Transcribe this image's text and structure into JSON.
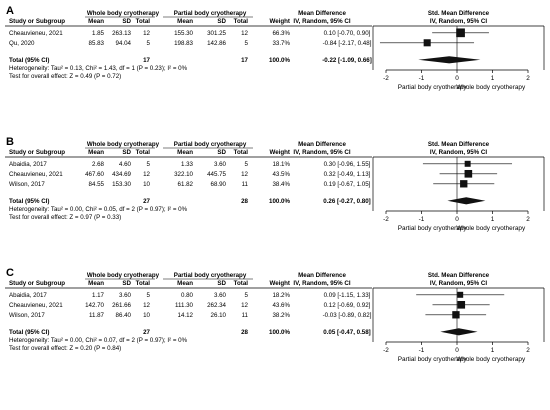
{
  "colors": {
    "line": "#000000",
    "box": "#111111",
    "text": "#000000"
  },
  "headers": {
    "study": "Study or Subgroup",
    "group1": "Whole body cryotherapy",
    "group2": "Partial body cryotherapy",
    "mean": "Mean",
    "sd": "SD",
    "total": "Total",
    "weight": "Weight",
    "md_line1": "Mean Difference",
    "md_line2": "IV, Random, 95% CI",
    "smd_line1": "Std. Mean Difference",
    "smd_line2": "IV, Random, 95% CI"
  },
  "chart_data": [
    {
      "type": "forest",
      "panel": "A",
      "studies": [
        {
          "name": "Cheauvieneu, 2021",
          "g1_mean": "1.85",
          "g1_sd": "263.13",
          "g1_n": "12",
          "g2_mean": "155.30",
          "g2_sd": "301.25",
          "g2_n": "12",
          "weight": "66.3%",
          "ci_text": "0.10 [-0.70, 0.90]",
          "est": 0.1,
          "lo": -0.7,
          "hi": 0.9,
          "w": 66.3
        },
        {
          "name": "Qu, 2020",
          "g1_mean": "85.83",
          "g1_sd": "94.04",
          "g1_n": "5",
          "g2_mean": "198.83",
          "g2_sd": "142.86",
          "g2_n": "5",
          "weight": "33.7%",
          "ci_text": "-0.84 [-2.17, 0.48]",
          "est": -0.84,
          "lo": -2.17,
          "hi": 0.48,
          "w": 33.7
        }
      ],
      "total": {
        "label": "Total (95% CI)",
        "g1_n": "17",
        "g2_n": "17",
        "weight": "100.0%",
        "ci_text": "-0.22 [-1.09, 0.66]",
        "est": -0.22,
        "lo": -1.09,
        "hi": 0.66
      },
      "heterogeneity": "Heterogeneity: Tau² = 0.13, Chi² = 1.43, df = 1 (P = 0.23); I² = 0%",
      "overall_test": "Test for overall effect: Z = 0.49 (P = 0.72)",
      "xlim": [
        -2,
        2
      ],
      "ticks": [
        "-2",
        "-1",
        "0",
        "1",
        "2"
      ],
      "left_label": "Partial body cryotherapy",
      "right_label": "Whole body cryotherapy"
    },
    {
      "type": "forest",
      "panel": "B",
      "studies": [
        {
          "name": "Abaidia, 2017",
          "g1_mean": "2.68",
          "g1_sd": "4.60",
          "g1_n": "5",
          "g2_mean": "1.33",
          "g2_sd": "3.60",
          "g2_n": "5",
          "weight": "18.1%",
          "ci_text": "0.30 [-0.96, 1.55]",
          "est": 0.3,
          "lo": -0.96,
          "hi": 1.55,
          "w": 18.1
        },
        {
          "name": "Cheauvieneu, 2021",
          "g1_mean": "467.60",
          "g1_sd": "434.69",
          "g1_n": "12",
          "g2_mean": "322.10",
          "g2_sd": "445.75",
          "g2_n": "12",
          "weight": "43.5%",
          "ci_text": "0.32 [-0.49, 1.13]",
          "est": 0.32,
          "lo": -0.49,
          "hi": 1.13,
          "w": 43.5
        },
        {
          "name": "Wilson, 2017",
          "g1_mean": "84.55",
          "g1_sd": "153.30",
          "g1_n": "10",
          "g2_mean": "61.82",
          "g2_sd": "68.90",
          "g2_n": "11",
          "weight": "38.4%",
          "ci_text": "0.19 [-0.67, 1.05]",
          "est": 0.19,
          "lo": -0.67,
          "hi": 1.05,
          "w": 38.4
        }
      ],
      "total": {
        "label": "Total (95% CI)",
        "g1_n": "27",
        "g2_n": "28",
        "weight": "100.0%",
        "ci_text": "0.26 [-0.27, 0.80]",
        "est": 0.26,
        "lo": -0.27,
        "hi": 0.8
      },
      "heterogeneity": "Heterogeneity: Tau² = 0.00, Chi² = 0.05, df = 2 (P = 0.97); I² = 0%",
      "overall_test": "Test for overall effect: Z = 0.97 (P = 0.33)",
      "xlim": [
        -2,
        2
      ],
      "ticks": [
        "-2",
        "-1",
        "0",
        "1",
        "2"
      ],
      "left_label": "Partial body cryotherapy",
      "right_label": "Whole body cryotherapy"
    },
    {
      "type": "forest",
      "panel": "C",
      "studies": [
        {
          "name": "Abaidia, 2017",
          "g1_mean": "1.17",
          "g1_sd": "3.60",
          "g1_n": "5",
          "g2_mean": "0.80",
          "g2_sd": "3.60",
          "g2_n": "5",
          "weight": "18.2%",
          "ci_text": "0.09 [-1.15, 1.33]",
          "est": 0.09,
          "lo": -1.15,
          "hi": 1.33,
          "w": 18.2
        },
        {
          "name": "Cheauvieneu, 2021",
          "g1_mean": "142.70",
          "g1_sd": "261.66",
          "g1_n": "12",
          "g2_mean": "111.30",
          "g2_sd": "262.34",
          "g2_n": "12",
          "weight": "43.6%",
          "ci_text": "0.12 [-0.69, 0.92]",
          "est": 0.12,
          "lo": -0.69,
          "hi": 0.92,
          "w": 43.6
        },
        {
          "name": "Wilson, 2017",
          "g1_mean": "11.87",
          "g1_sd": "86.40",
          "g1_n": "10",
          "g2_mean": "14.12",
          "g2_sd": "26.10",
          "g2_n": "11",
          "weight": "38.2%",
          "ci_text": "-0.03 [-0.89, 0.82]",
          "est": -0.03,
          "lo": -0.89,
          "hi": 0.82,
          "w": 38.2
        }
      ],
      "total": {
        "label": "Total (95% CI)",
        "g1_n": "27",
        "g2_n": "28",
        "weight": "100.0%",
        "ci_text": "0.05 [-0.47, 0.58]",
        "est": 0.05,
        "lo": -0.47,
        "hi": 0.58
      },
      "heterogeneity": "Heterogeneity: Tau² = 0.00, Chi² = 0.07, df = 2 (P = 0.97); I² = 0%",
      "overall_test": "Test for overall effect: Z = 0.20 (P = 0.84)",
      "xlim": [
        -2,
        2
      ],
      "ticks": [
        "-2",
        "-1",
        "0",
        "1",
        "2"
      ],
      "left_label": "Partial body cryotherapy",
      "right_label": "Whole body cryotherapy"
    }
  ]
}
